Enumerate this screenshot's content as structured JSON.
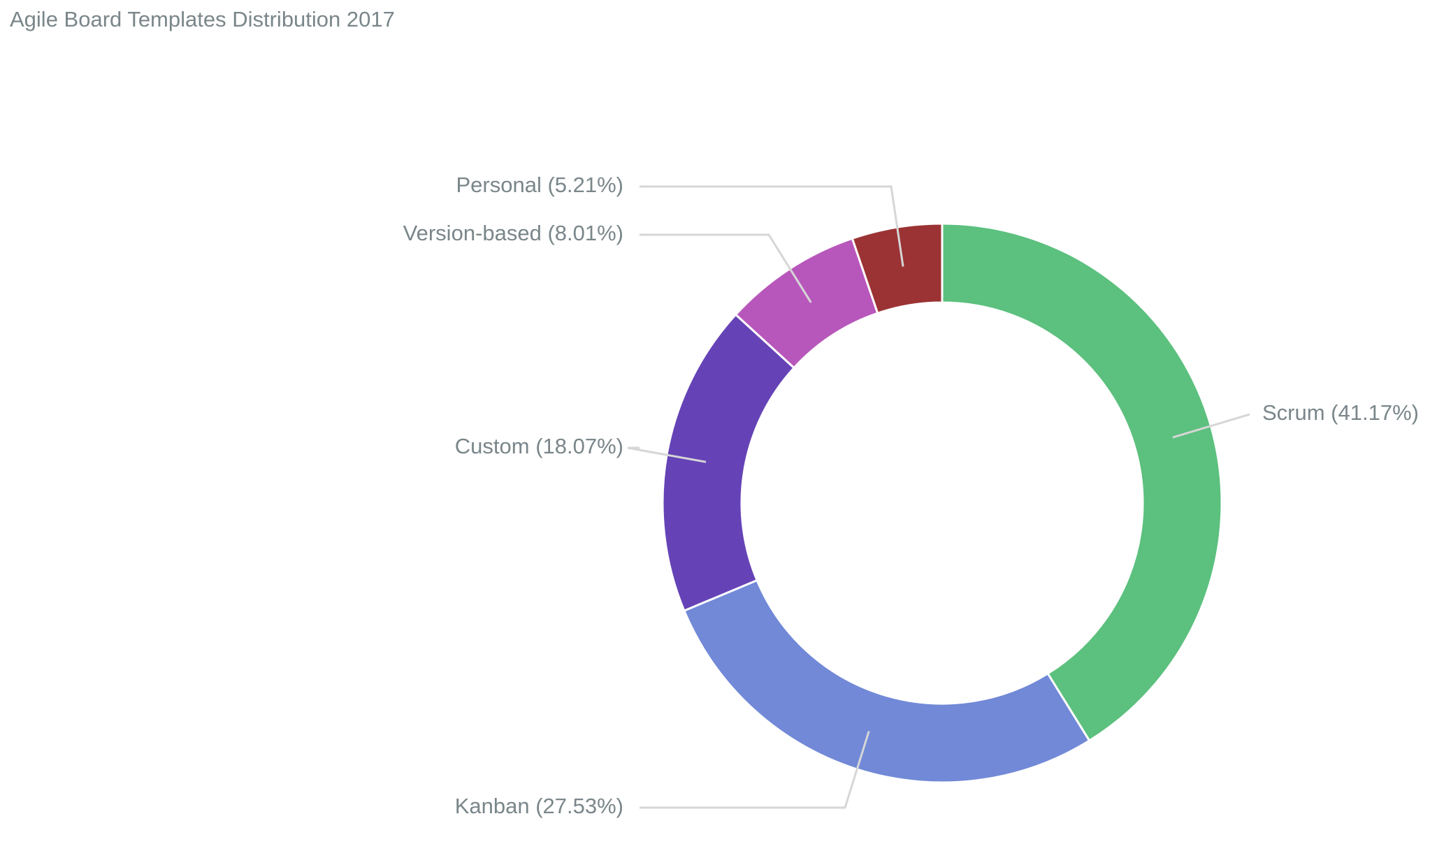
{
  "chart_data": {
    "type": "pie",
    "variant": "donut",
    "title": "Agile Board Templates Distribution 2017",
    "slices": [
      {
        "label": "Scrum (41.17%)",
        "name": "Scrum",
        "value": 41.17,
        "color": "#5cc07e"
      },
      {
        "label": "Kanban (27.53%)",
        "name": "Kanban",
        "value": 27.53,
        "color": "#7189d7"
      },
      {
        "label": "Custom (18.07%)",
        "name": "Custom",
        "value": 18.07,
        "color": "#6543b6"
      },
      {
        "label": "Version-based (8.01%)",
        "name": "Version-based",
        "value": 8.01,
        "color": "#b857bb"
      },
      {
        "label": "Personal (5.21%)",
        "name": "Personal",
        "value": 5.21,
        "color": "#9b3334"
      }
    ]
  }
}
